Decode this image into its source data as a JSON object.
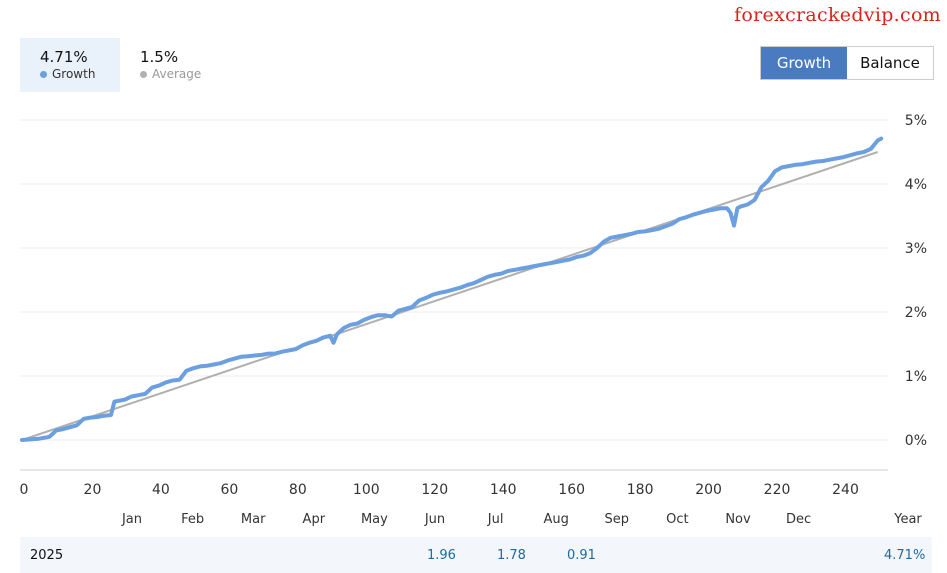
{
  "watermark": "forexcrackedvip.com",
  "stats": [
    {
      "value": "4.71%",
      "label": "Growth",
      "color": "#6b9fe0"
    },
    {
      "value": "1.5%",
      "label": "Average",
      "color": "#b0b0b0"
    }
  ],
  "toggle": {
    "growth_label": "Growth",
    "balance_label": "Balance",
    "selected": "Growth"
  },
  "colors": {
    "growth_line": "#6b9fe0",
    "average_line": "#b0b0b0",
    "accent": "#4a7bc1"
  },
  "chart_data": {
    "type": "line",
    "xlim": [
      0,
      253
    ],
    "ylim": [
      0,
      5
    ],
    "x_ticks": [
      0,
      20,
      40,
      60,
      80,
      100,
      120,
      140,
      160,
      180,
      200,
      220,
      240
    ],
    "x_tick_labels": [
      "0",
      "20",
      "40",
      "60",
      "80",
      "100",
      "120",
      "140",
      "160",
      "180",
      "200",
      "220",
      "240"
    ],
    "y_ticks": [
      0,
      1,
      2,
      3,
      4,
      5
    ],
    "y_tick_labels": [
      "0%",
      "1%",
      "2%",
      "3%",
      "4%",
      "5%"
    ],
    "months": [
      "Jan",
      "Feb",
      "Mar",
      "Apr",
      "May",
      "Jun",
      "Jul",
      "Aug",
      "Sep",
      "Oct",
      "Nov",
      "Dec"
    ],
    "months_trailing_label": "Year",
    "grid": true,
    "series": [
      {
        "name": "Growth",
        "x": [
          0,
          5,
          8,
          10,
          12,
          14,
          16,
          18,
          20,
          22,
          24,
          26,
          27,
          30,
          32,
          34,
          36,
          38,
          40,
          42,
          44,
          46,
          48,
          50,
          52,
          54,
          56,
          58,
          60,
          62,
          64,
          66,
          68,
          70,
          72,
          74,
          76,
          78,
          80,
          82,
          84,
          86,
          88,
          90,
          91,
          92,
          94,
          96,
          98,
          100,
          102,
          104,
          106,
          108,
          110,
          112,
          114,
          116,
          118,
          120,
          122,
          124,
          126,
          128,
          130,
          132,
          134,
          136,
          138,
          140,
          142,
          144,
          146,
          148,
          150,
          152,
          154,
          156,
          158,
          160,
          162,
          164,
          166,
          168,
          170,
          172,
          174,
          176,
          178,
          180,
          182,
          184,
          186,
          188,
          190,
          192,
          194,
          196,
          198,
          200,
          202,
          204,
          206,
          207,
          208,
          209,
          210,
          212,
          214,
          216,
          218,
          220,
          222,
          224,
          226,
          228,
          230,
          232,
          234,
          236,
          238,
          240,
          242,
          244,
          246,
          248,
          250,
          251
        ],
        "y": [
          0,
          0.02,
          0.05,
          0.15,
          0.17,
          0.2,
          0.23,
          0.33,
          0.35,
          0.36,
          0.38,
          0.39,
          0.6,
          0.63,
          0.68,
          0.7,
          0.72,
          0.82,
          0.85,
          0.9,
          0.93,
          0.94,
          1.08,
          1.12,
          1.15,
          1.16,
          1.18,
          1.2,
          1.24,
          1.27,
          1.3,
          1.31,
          1.32,
          1.33,
          1.35,
          1.35,
          1.38,
          1.4,
          1.42,
          1.48,
          1.52,
          1.55,
          1.6,
          1.63,
          1.52,
          1.65,
          1.75,
          1.8,
          1.82,
          1.88,
          1.92,
          1.95,
          1.95,
          1.93,
          2.02,
          2.05,
          2.08,
          2.18,
          2.22,
          2.27,
          2.3,
          2.32,
          2.35,
          2.38,
          2.42,
          2.45,
          2.5,
          2.55,
          2.58,
          2.6,
          2.64,
          2.66,
          2.68,
          2.7,
          2.72,
          2.74,
          2.76,
          2.78,
          2.8,
          2.82,
          2.86,
          2.88,
          2.92,
          3.0,
          3.1,
          3.16,
          3.18,
          3.2,
          3.22,
          3.25,
          3.26,
          3.28,
          3.3,
          3.34,
          3.38,
          3.45,
          3.48,
          3.52,
          3.55,
          3.58,
          3.6,
          3.62,
          3.62,
          3.55,
          3.35,
          3.62,
          3.65,
          3.68,
          3.75,
          3.95,
          4.05,
          4.2,
          4.26,
          4.28,
          4.3,
          4.31,
          4.33,
          4.35,
          4.36,
          4.38,
          4.4,
          4.42,
          4.45,
          4.48,
          4.5,
          4.55,
          4.68,
          4.71
        ]
      },
      {
        "name": "Average",
        "x": [
          0,
          250
        ],
        "y": [
          0,
          4.5
        ]
      }
    ]
  },
  "footer": {
    "year": "2025",
    "values": [
      {
        "month": "Jun",
        "value": "1.96"
      },
      {
        "month": "Jul",
        "value": "1.78"
      },
      {
        "month": "Aug",
        "value": "0.91"
      }
    ],
    "total": "4.71%"
  }
}
